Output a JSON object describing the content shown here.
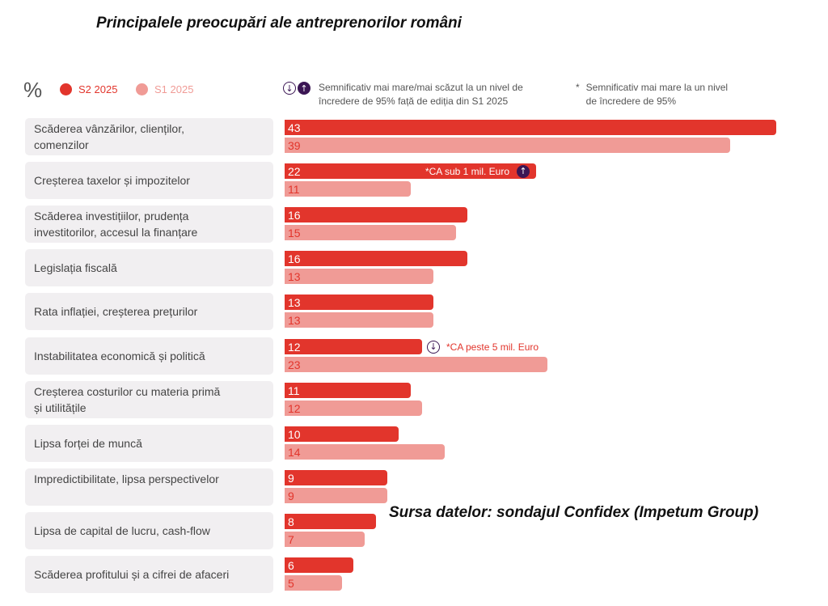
{
  "header": {
    "title": "Principalele preocupări ale antreprenorilor români",
    "percent_symbol": "%"
  },
  "legend": {
    "series": [
      {
        "name": "S2 2025",
        "color": "#e2352c"
      },
      {
        "name": "S1 2025",
        "color": "#f09b96"
      }
    ],
    "significance_icons": [
      "arrow-down-circle-icon",
      "arrow-up-circle-icon"
    ],
    "significance_note_line1": "Semnificativ mai mare/mai scăzut la un nivel de",
    "significance_note_line2": "încredere de 95% față de ediția din S1 2025",
    "asterisk": "*",
    "asterisk_note_line1": "Semnificativ mai mare la un nivel",
    "asterisk_note_line2": "de încredere de 95%"
  },
  "footer": {
    "source": "Sursa datelor: sondajul Confidex (Impetum Group)"
  },
  "chart_data": {
    "type": "bar",
    "orientation": "horizontal",
    "title": "Principalele preocupări ale antreprenorilor români",
    "unit": "%",
    "xlabel": "",
    "ylabel": "",
    "xlim": [
      0,
      43
    ],
    "grid": false,
    "legend_position": "top-left",
    "categories": [
      "Scăderea vânzărilor, clienților, comenzilor",
      "Creșterea taxelor și impozitelor",
      "Scăderea investițiilor, prudența investitorilor, accesul la finanțare",
      "Legislația fiscală",
      "Rata inflației, creșterea prețurilor",
      "Instabilitatea economică și politică",
      "Creșterea costurilor cu materia primă și utilitățile",
      "Lipsa forței de muncă",
      "Impredictibilitate, lipsa perspectivelor",
      "Lipsa de capital de lucru, cash-flow",
      "Scăderea profitului și a cifrei de afaceri"
    ],
    "category_lines": [
      [
        "Scăderea vânzărilor, clienților,",
        "comenzilor"
      ],
      [
        "Creșterea taxelor și impozitelor"
      ],
      [
        "Scăderea investițiilor, prudența",
        "investitorilor, accesul la finanțare"
      ],
      [
        "Legislația fiscală"
      ],
      [
        "Rata inflației, creșterea prețurilor"
      ],
      [
        "Instabilitatea economică și politică"
      ],
      [
        "Creșterea costurilor cu materia primă",
        "și utilitățile"
      ],
      [
        "Lipsa forței de muncă"
      ],
      [
        "Impredictibilitate, lipsa perspectivelor"
      ],
      [
        "Lipsa de capital de lucru, cash-flow"
      ],
      [
        "Scăderea profitului și a cifrei de afaceri"
      ]
    ],
    "series": [
      {
        "name": "S2 2025",
        "color": "#e2352c",
        "values": [
          43,
          22,
          16,
          16,
          13,
          12,
          11,
          10,
          9,
          8,
          6
        ]
      },
      {
        "name": "S1 2025",
        "color": "#f09b96",
        "values": [
          39,
          11,
          15,
          13,
          13,
          23,
          12,
          14,
          9,
          7,
          5
        ]
      }
    ],
    "annotations": [
      {
        "category_index": 1,
        "series": "S2 2025",
        "text": "*CA sub 1 mil. Euro",
        "icon": "arrow-up-circle-icon",
        "placement": "inside"
      },
      {
        "category_index": 5,
        "series": "S2 2025",
        "text": "*CA peste 5 mil. Euro",
        "icon": "arrow-down-circle-icon",
        "placement": "outside"
      }
    ]
  }
}
